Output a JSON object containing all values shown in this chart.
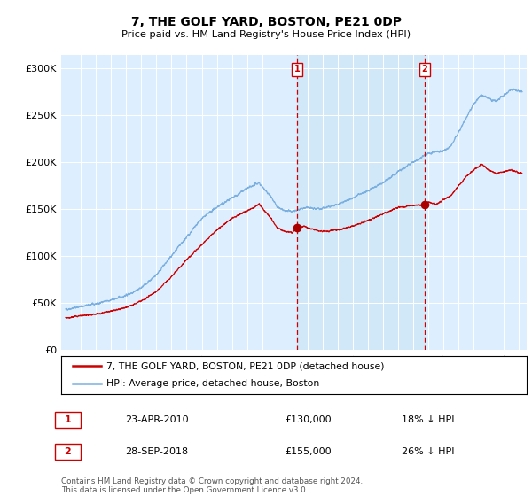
{
  "title": "7, THE GOLF YARD, BOSTON, PE21 0DP",
  "subtitle": "Price paid vs. HM Land Registry's House Price Index (HPI)",
  "ylabel_ticks": [
    "£0",
    "£50K",
    "£100K",
    "£150K",
    "£200K",
    "£250K",
    "£300K"
  ],
  "ytick_values": [
    0,
    50000,
    100000,
    150000,
    200000,
    250000,
    300000
  ],
  "ylim": [
    0,
    315000
  ],
  "xlim_start": 1994.7,
  "xlim_end": 2025.5,
  "sale1_date": 2010.31,
  "sale1_price": 130000,
  "sale1_label": "1",
  "sale2_date": 2018.74,
  "sale2_price": 155000,
  "sale2_label": "2",
  "line_color_red": "#cc0000",
  "line_color_blue": "#7aafe0",
  "bg_color": "#ddeeff",
  "shade_color": "#d0e8f8",
  "sale_marker_color": "#aa0000",
  "vline_color": "#cc0000",
  "legend_line1": "7, THE GOLF YARD, BOSTON, PE21 0DP (detached house)",
  "legend_line2": "HPI: Average price, detached house, Boston",
  "table_row1": [
    "1",
    "23-APR-2010",
    "£130,000",
    "18% ↓ HPI"
  ],
  "table_row2": [
    "2",
    "28-SEP-2018",
    "£155,000",
    "26% ↓ HPI"
  ],
  "footer": "Contains HM Land Registry data © Crown copyright and database right 2024.\nThis data is licensed under the Open Government Licence v3.0.",
  "hpi_anchors": [
    [
      1995.0,
      43000
    ],
    [
      1996.0,
      46000
    ],
    [
      1997.0,
      49000
    ],
    [
      1998.0,
      53000
    ],
    [
      1999.0,
      58000
    ],
    [
      2000.0,
      66000
    ],
    [
      2001.0,
      80000
    ],
    [
      2002.0,
      100000
    ],
    [
      2003.0,
      120000
    ],
    [
      2004.0,
      140000
    ],
    [
      2005.0,
      152000
    ],
    [
      2006.0,
      162000
    ],
    [
      2007.0,
      172000
    ],
    [
      2007.8,
      178000
    ],
    [
      2008.5,
      165000
    ],
    [
      2009.0,
      152000
    ],
    [
      2009.5,
      148000
    ],
    [
      2010.0,
      148000
    ],
    [
      2010.5,
      150000
    ],
    [
      2011.0,
      152000
    ],
    [
      2011.5,
      150000
    ],
    [
      2012.0,
      151000
    ],
    [
      2013.0,
      155000
    ],
    [
      2014.0,
      162000
    ],
    [
      2015.0,
      170000
    ],
    [
      2016.0,
      178000
    ],
    [
      2017.0,
      190000
    ],
    [
      2018.0,
      200000
    ],
    [
      2019.0,
      210000
    ],
    [
      2020.0,
      212000
    ],
    [
      2020.5,
      218000
    ],
    [
      2021.0,
      232000
    ],
    [
      2021.5,
      248000
    ],
    [
      2022.0,
      262000
    ],
    [
      2022.5,
      272000
    ],
    [
      2023.0,
      268000
    ],
    [
      2023.5,
      265000
    ],
    [
      2024.0,
      272000
    ],
    [
      2024.5,
      278000
    ],
    [
      2025.2,
      275000
    ]
  ],
  "prop_anchors": [
    [
      1995.0,
      34000
    ],
    [
      1996.0,
      36000
    ],
    [
      1997.0,
      38000
    ],
    [
      1998.0,
      41000
    ],
    [
      1999.0,
      45000
    ],
    [
      2000.0,
      52000
    ],
    [
      2001.0,
      62000
    ],
    [
      2002.0,
      78000
    ],
    [
      2003.0,
      96000
    ],
    [
      2004.0,
      112000
    ],
    [
      2005.0,
      128000
    ],
    [
      2006.0,
      140000
    ],
    [
      2007.0,
      148000
    ],
    [
      2007.8,
      155000
    ],
    [
      2008.5,
      142000
    ],
    [
      2009.0,
      130000
    ],
    [
      2009.5,
      126000
    ],
    [
      2010.0,
      125000
    ],
    [
      2010.31,
      130000
    ],
    [
      2010.8,
      132000
    ],
    [
      2011.0,
      130000
    ],
    [
      2011.5,
      128000
    ],
    [
      2012.0,
      126000
    ],
    [
      2013.0,
      128000
    ],
    [
      2014.0,
      132000
    ],
    [
      2015.0,
      138000
    ],
    [
      2016.0,
      145000
    ],
    [
      2017.0,
      152000
    ],
    [
      2018.0,
      154000
    ],
    [
      2018.74,
      155000
    ],
    [
      2019.0,
      158000
    ],
    [
      2019.5,
      155000
    ],
    [
      2020.0,
      160000
    ],
    [
      2020.5,
      165000
    ],
    [
      2021.0,
      175000
    ],
    [
      2021.5,
      185000
    ],
    [
      2022.0,
      192000
    ],
    [
      2022.5,
      198000
    ],
    [
      2023.0,
      192000
    ],
    [
      2023.5,
      188000
    ],
    [
      2024.0,
      190000
    ],
    [
      2024.5,
      192000
    ],
    [
      2025.2,
      188000
    ]
  ]
}
